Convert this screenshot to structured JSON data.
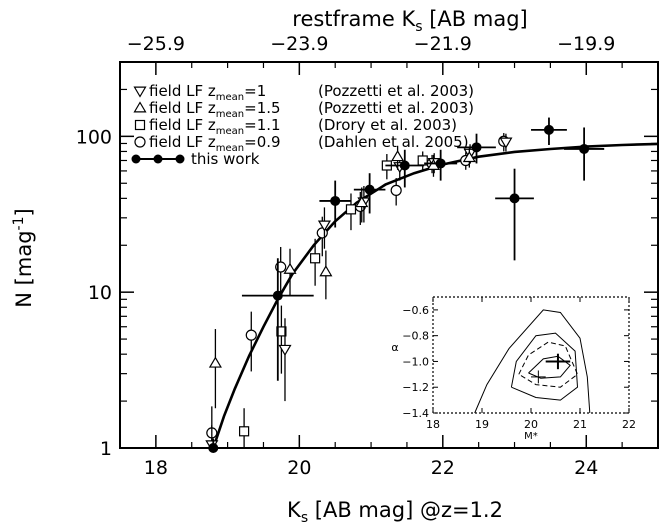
{
  "chart_data": [
    {
      "type": "scatter",
      "xlabel": "K",
      "xlabel_sub": "s",
      "xlabel_rest": " [AB mag] @z=1.2",
      "ylabel": "N [mag",
      "ylabel_sup": "-1",
      "ylabel_close": "]",
      "top_axis_label": "restframe K",
      "top_axis_label_sub": "s",
      "top_axis_label_rest": " [AB mag]",
      "xlim": [
        17.5,
        25.0
      ],
      "ylim": [
        1,
        300
      ],
      "yscale": "log",
      "x_ticks": [
        18,
        20,
        22,
        24
      ],
      "x_tick_labels": [
        "18",
        "20",
        "22",
        "24"
      ],
      "y_ticks": [
        1,
        10,
        100
      ],
      "y_tick_labels": [
        "1",
        "10",
        "100"
      ],
      "top_ticks": [
        18,
        20,
        22,
        24
      ],
      "top_tick_labels": [
        "−25.9",
        "−23.9",
        "−21.9",
        "−19.9"
      ],
      "legend_position": "top-left",
      "legend": [
        {
          "symbol": "triangle-down",
          "pre": "field LF z",
          "sub": "mean",
          "post": "=1",
          "ref": "(Pozzetti et al. 2003)"
        },
        {
          "symbol": "triangle-up",
          "pre": "field LF z",
          "sub": "mean",
          "post": "=1.5",
          "ref": "(Pozzetti et al. 2003)"
        },
        {
          "symbol": "square",
          "pre": "field LF z",
          "sub": "mean",
          "post": "=1.1",
          "ref": "(Drory et al. 2003)"
        },
        {
          "symbol": "circle",
          "pre": "field LF z",
          "sub": "mean",
          "post": "=0.9",
          "ref": "(Dahlen et al. 2005)"
        },
        {
          "symbol": "filled-circle-line",
          "pre": "this work",
          "sub": "",
          "post": "",
          "ref": ""
        }
      ],
      "fit_curve": {
        "x": [
          18.8,
          18.95,
          19.1,
          19.3,
          19.5,
          19.7,
          19.9,
          20.2,
          20.5,
          20.8,
          21.2,
          21.6,
          22.0,
          22.5,
          23.0,
          23.5,
          24.0,
          24.5,
          25.0
        ],
        "y": [
          1.0,
          1.6,
          2.4,
          3.9,
          6.0,
          9.0,
          13.0,
          20.0,
          28.5,
          37.5,
          49.0,
          58.0,
          66.0,
          74.0,
          79.5,
          83.0,
          86.0,
          88.0,
          89.5
        ]
      },
      "series": [
        {
          "name": "this work",
          "marker": "filled-circle",
          "points": [
            {
              "x": 18.8,
              "y": 1.0,
              "xerr": 0.0,
              "ylo": 0.7,
              "yhi": 1.15
            },
            {
              "x": 19.7,
              "y": 9.5,
              "xerr": 0.5,
              "ylo": 2.7,
              "yhi": 16.5
            },
            {
              "x": 20.5,
              "y": 38.5,
              "xerr": 0.22,
              "ylo": 26.0,
              "yhi": 52.0
            },
            {
              "x": 20.98,
              "y": 45.5,
              "xerr": 0.22,
              "ylo": 32.0,
              "yhi": 58.0
            },
            {
              "x": 21.47,
              "y": 65.0,
              "xerr": 0.27,
              "ylo": 47.0,
              "yhi": 82.0
            },
            {
              "x": 21.97,
              "y": 67.0,
              "xerr": 0.23,
              "ylo": 52.0,
              "yhi": 82.0
            },
            {
              "x": 22.47,
              "y": 85.0,
              "xerr": 0.27,
              "ylo": 67.0,
              "yhi": 104.0
            },
            {
              "x": 23.0,
              "y": 40.0,
              "xerr": 0.27,
              "ylo": 16.0,
              "yhi": 62.0
            },
            {
              "x": 23.48,
              "y": 110.0,
              "xerr": 0.25,
              "ylo": 88.0,
              "yhi": 132.0
            },
            {
              "x": 23.97,
              "y": 83.0,
              "xerr": 0.28,
              "ylo": 52.0,
              "yhi": 114.0
            }
          ]
        },
        {
          "name": "field LF z=0.9 (Dahlen et al. 2005)",
          "marker": "circle",
          "points": [
            {
              "x": 18.78,
              "y": 1.25,
              "ylo": 0.7,
              "yhi": 1.85
            },
            {
              "x": 19.33,
              "y": 5.3,
              "ylo": 3.1,
              "yhi": 7.5
            },
            {
              "x": 19.74,
              "y": 14.5,
              "ylo": 9.5,
              "yhi": 19.5
            },
            {
              "x": 20.32,
              "y": 24.0,
              "ylo": 17.0,
              "yhi": 30.5
            },
            {
              "x": 20.85,
              "y": 35.5,
              "ylo": 27.0,
              "yhi": 44.0
            },
            {
              "x": 21.35,
              "y": 45.0,
              "ylo": 36.0,
              "yhi": 54.0
            },
            {
              "x": 21.85,
              "y": 67.0,
              "ylo": 58.0,
              "yhi": 76.0
            },
            {
              "x": 22.32,
              "y": 70.0,
              "ylo": 61.0,
              "yhi": 79.0
            },
            {
              "x": 22.85,
              "y": 93.0,
              "ylo": 80.0,
              "yhi": 105.0
            }
          ]
        },
        {
          "name": "field LF z=1.1 (Drory et al. 2003)",
          "marker": "square",
          "points": [
            {
              "x": 19.23,
              "y": 1.28,
              "ylo": 0.75,
              "yhi": 1.8
            },
            {
              "x": 19.75,
              "y": 5.6,
              "ylo": 3.0,
              "yhi": 8.2
            },
            {
              "x": 20.22,
              "y": 16.5,
              "ylo": 11.0,
              "yhi": 22.0
            },
            {
              "x": 20.72,
              "y": 34.0,
              "ylo": 25.0,
              "yhi": 43.0
            },
            {
              "x": 21.22,
              "y": 65.0,
              "ylo": 53.0,
              "yhi": 77.0
            },
            {
              "x": 21.72,
              "y": 70.0,
              "ylo": 60.0,
              "yhi": 80.0
            }
          ]
        },
        {
          "name": "field LF z=1 (Pozzetti et al. 2003)",
          "marker": "triangle-down",
          "points": [
            {
              "x": 18.78,
              "y": 1.05,
              "ylo": 0.7,
              "yhi": 1.4
            },
            {
              "x": 19.8,
              "y": 4.3,
              "ylo": 2.0,
              "yhi": 6.8
            },
            {
              "x": 20.35,
              "y": 27.0,
              "ylo": 19.0,
              "yhi": 35.0
            },
            {
              "x": 20.9,
              "y": 38.0,
              "ylo": 28.0,
              "yhi": 48.0
            },
            {
              "x": 21.4,
              "y": 64.0,
              "ylo": 52.0,
              "yhi": 76.0
            },
            {
              "x": 21.88,
              "y": 68.0,
              "ylo": 58.0,
              "yhi": 78.0
            },
            {
              "x": 22.38,
              "y": 78.0,
              "ylo": 67.0,
              "yhi": 89.0
            },
            {
              "x": 22.88,
              "y": 92.0,
              "ylo": 80.0,
              "yhi": 104.0
            }
          ]
        },
        {
          "name": "field LF z=1.5 (Pozzetti et al. 2003)",
          "marker": "triangle-up",
          "points": [
            {
              "x": 18.83,
              "y": 3.5,
              "ylo": 1.8,
              "yhi": 5.8
            },
            {
              "x": 19.87,
              "y": 14.0,
              "ylo": 9.5,
              "yhi": 19.0
            },
            {
              "x": 20.37,
              "y": 13.5,
              "ylo": 9.0,
              "yhi": 18.5
            },
            {
              "x": 20.87,
              "y": 37.5,
              "ylo": 28.0,
              "yhi": 47.0
            },
            {
              "x": 21.37,
              "y": 74.0,
              "ylo": 61.0,
              "yhi": 87.0
            },
            {
              "x": 21.87,
              "y": 65.0,
              "ylo": 55.0,
              "yhi": 76.0
            },
            {
              "x": 22.37,
              "y": 73.0,
              "ylo": 63.0,
              "yhi": 84.0
            }
          ]
        }
      ]
    },
    {
      "type": "contour",
      "role": "inset",
      "xlabel": "M*",
      "ylabel": "α",
      "xlim": [
        18,
        22
      ],
      "ylim": [
        -1.4,
        -0.5
      ],
      "x_ticks": [
        18,
        19,
        20,
        21,
        22
      ],
      "x_tick_labels": [
        "18",
        "19",
        "20",
        "21",
        "22"
      ],
      "y_ticks": [
        -1.4,
        -1.2,
        -1.0,
        -0.8,
        -0.6
      ],
      "y_tick_labels": [
        "−1.4",
        "−1.2",
        "−1.0",
        "−0.8",
        "−0.6"
      ],
      "best_fit": {
        "x": 20.55,
        "y": -1.0,
        "xerr": 0.25,
        "yerr": 0.06
      },
      "alt_fit": {
        "x": 20.15,
        "y": -1.12,
        "xerr": 0.15,
        "yerr": 0.05
      },
      "contours": [
        {
          "style": "solid",
          "points": [
            [
              18.85,
              -1.4
            ],
            [
              19.1,
              -1.18
            ],
            [
              19.55,
              -0.9
            ],
            [
              20.25,
              -0.6
            ],
            [
              20.6,
              -0.62
            ],
            [
              21.0,
              -0.82
            ],
            [
              21.15,
              -1.12
            ],
            [
              21.2,
              -1.4
            ]
          ]
        },
        {
          "style": "solid",
          "points": [
            [
              19.6,
              -1.2
            ],
            [
              19.7,
              -1.0
            ],
            [
              20.1,
              -0.8
            ],
            [
              20.5,
              -0.78
            ],
            [
              20.9,
              -0.92
            ],
            [
              20.95,
              -1.2
            ],
            [
              20.6,
              -1.3
            ],
            [
              20.1,
              -1.28
            ],
            [
              19.6,
              -1.2
            ]
          ]
        },
        {
          "style": "dashed",
          "points": [
            [
              19.75,
              -1.1
            ],
            [
              19.95,
              -0.95
            ],
            [
              20.35,
              -0.85
            ],
            [
              20.7,
              -0.88
            ],
            [
              20.95,
              -1.1
            ],
            [
              20.6,
              -1.2
            ],
            [
              20.1,
              -1.18
            ],
            [
              19.75,
              -1.1
            ]
          ]
        },
        {
          "style": "solid",
          "points": [
            [
              19.95,
              -1.09
            ],
            [
              20.25,
              -0.98
            ],
            [
              20.55,
              -0.96
            ],
            [
              20.8,
              -1.03
            ],
            [
              20.6,
              -1.12
            ],
            [
              20.2,
              -1.13
            ],
            [
              19.95,
              -1.09
            ]
          ]
        }
      ]
    }
  ]
}
